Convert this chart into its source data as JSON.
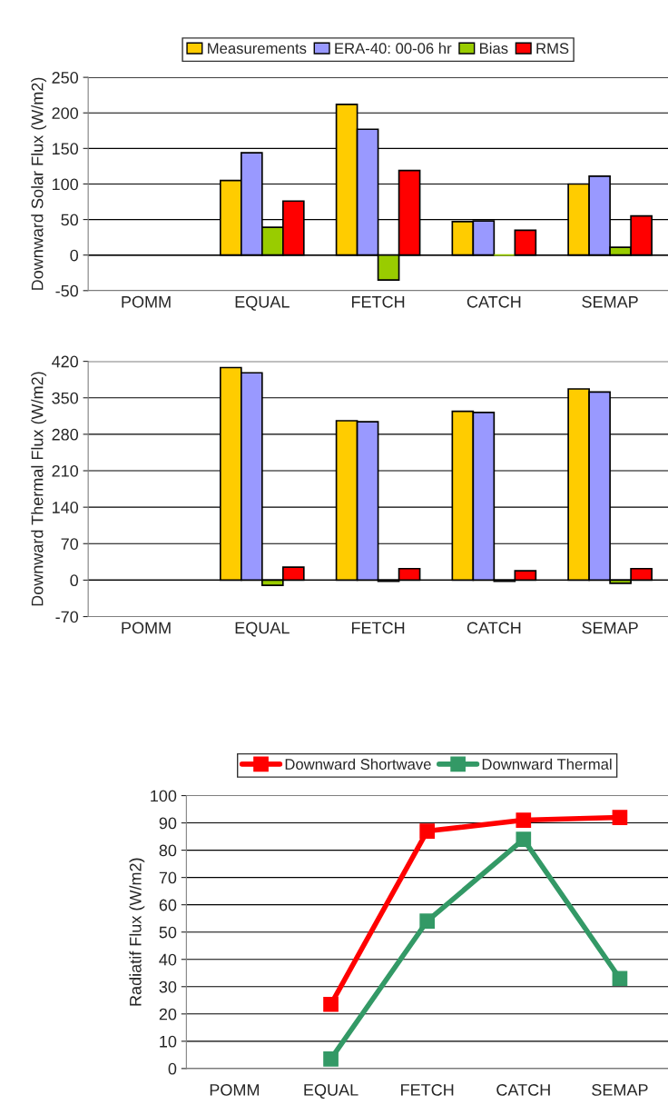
{
  "chart_data": [
    {
      "type": "bar",
      "ylabel": "Downward Solar Flux (W/m2)",
      "categories": [
        "POMM",
        "EQUAL",
        "FETCH",
        "CATCH",
        "SEMAP"
      ],
      "ylim": [
        -50,
        250
      ],
      "yticks": [
        -50,
        0,
        50,
        100,
        150,
        200,
        250
      ],
      "grid": "y",
      "legend": "top",
      "series": [
        {
          "name": "Measurements",
          "color": "#ffcc00",
          "values": [
            null,
            105,
            212,
            47,
            100
          ]
        },
        {
          "name": "ERA-40: 00-06 hr",
          "color": "#9999ff",
          "values": [
            null,
            144,
            177,
            48,
            111
          ]
        },
        {
          "name": "Bias",
          "color": "#99cc00",
          "values": [
            null,
            39,
            -35,
            0,
            11
          ]
        },
        {
          "name": "RMS",
          "color": "#ff0000",
          "values": [
            null,
            76,
            119,
            35,
            55
          ]
        }
      ]
    },
    {
      "type": "bar",
      "ylabel": "Downward Thermal Flux (W/m2)",
      "categories": [
        "POMM",
        "EQUAL",
        "FETCH",
        "CATCH",
        "SEMAP"
      ],
      "ylim": [
        -70,
        420
      ],
      "yticks": [
        -70,
        0,
        70,
        140,
        210,
        280,
        350,
        420
      ],
      "grid": "y",
      "series": [
        {
          "color": "#ffcc00",
          "values": [
            null,
            408,
            306,
            324,
            367
          ]
        },
        {
          "color": "#9999ff",
          "values": [
            null,
            398,
            304,
            322,
            361
          ]
        },
        {
          "color": "#99cc00",
          "values": [
            null,
            -10,
            -2,
            -2,
            -6
          ]
        },
        {
          "color": "#ff0000",
          "values": [
            null,
            25,
            22,
            18,
            22
          ]
        }
      ]
    },
    {
      "type": "line",
      "ylabel": "Radiatif Flux (W/m2)",
      "categories": [
        "POMM",
        "EQUAL",
        "FETCH",
        "CATCH",
        "SEMAP"
      ],
      "ylim": [
        0,
        100
      ],
      "yticks": [
        0,
        10,
        20,
        30,
        40,
        50,
        60,
        70,
        80,
        90,
        100
      ],
      "grid": "y",
      "legend": "top",
      "marker": "square",
      "line_style": "solid",
      "series": [
        {
          "name": "Downward Shortwave",
          "color": "#ff0000",
          "values": [
            null,
            23.5,
            87,
            91,
            92
          ]
        },
        {
          "name": "Downward Thermal",
          "color": "#339966",
          "values": [
            null,
            3.5,
            54,
            84,
            33
          ]
        }
      ]
    }
  ]
}
